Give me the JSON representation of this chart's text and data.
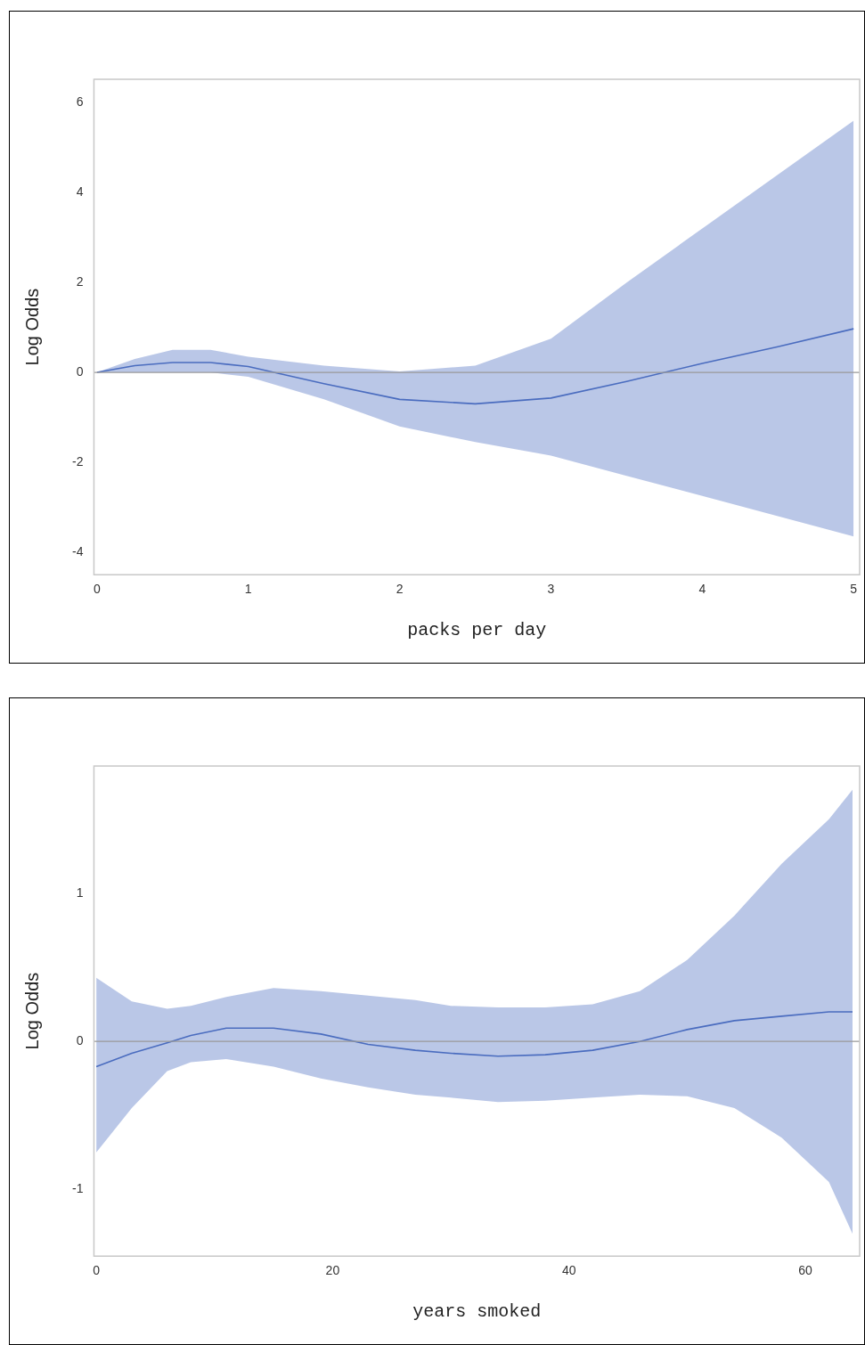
{
  "chart_data": [
    {
      "type": "line",
      "xlabel": "packs per day",
      "ylabel": "Log Odds",
      "xlim": [
        -0.02,
        5.04
      ],
      "xticks": [
        0,
        1,
        2,
        3,
        4,
        5
      ],
      "ylim": [
        -4.5,
        6.52
      ],
      "yticks": [
        -4,
        -2,
        0,
        2,
        4,
        6
      ],
      "grid": false,
      "legend": false,
      "marker": "none",
      "line_style": "solid",
      "ref_lines": [
        {
          "axis": "y",
          "value": 0,
          "color": "#999999"
        }
      ],
      "series": [
        {
          "color": "#4a6cbf",
          "x": [
            0,
            0.25,
            0.5,
            0.75,
            1,
            1.5,
            2,
            2.5,
            3,
            3.5,
            4,
            4.5,
            5
          ],
          "values": [
            0,
            0.15,
            0.22,
            0.22,
            0.13,
            -0.25,
            -0.6,
            -0.7,
            -0.57,
            -0.2,
            0.2,
            0.57,
            0.97
          ],
          "lower": [
            0,
            0,
            0,
            0,
            -0.1,
            -0.6,
            -1.2,
            -1.55,
            -1.85,
            -2.3,
            -2.75,
            -3.2,
            -3.65
          ],
          "upper": [
            0,
            0.3,
            0.5,
            0.5,
            0.35,
            0.15,
            0.02,
            0.15,
            0.75,
            2.0,
            3.2,
            4.4,
            5.6
          ]
        }
      ]
    },
    {
      "type": "line",
      "xlabel": "years smoked",
      "ylabel": "Log Odds",
      "xlim": [
        -0.2,
        64.6
      ],
      "xticks": [
        0,
        20,
        40,
        60
      ],
      "ylim": [
        -1.45,
        1.86
      ],
      "yticks": [
        -1,
        0,
        1
      ],
      "grid": false,
      "legend": false,
      "marker": "none",
      "line_style": "solid",
      "ref_lines": [
        {
          "axis": "y",
          "value": 0,
          "color": "#999999"
        }
      ],
      "series": [
        {
          "color": "#4a6cbf",
          "x": [
            0,
            3,
            6,
            8,
            11,
            15,
            19,
            23,
            27,
            30,
            34,
            38,
            42,
            46,
            50,
            54,
            58,
            62,
            64
          ],
          "values": [
            -0.17,
            -0.08,
            -0.01,
            0.04,
            0.09,
            0.09,
            0.05,
            -0.02,
            -0.06,
            -0.08,
            -0.1,
            -0.09,
            -0.06,
            0.0,
            0.08,
            0.14,
            0.17,
            0.2,
            0.2
          ],
          "lower": [
            -0.75,
            -0.45,
            -0.2,
            -0.14,
            -0.12,
            -0.17,
            -0.25,
            -0.31,
            -0.36,
            -0.38,
            -0.41,
            -0.4,
            -0.38,
            -0.36,
            -0.37,
            -0.45,
            -0.65,
            -0.95,
            -1.3
          ],
          "upper": [
            0.43,
            0.27,
            0.22,
            0.24,
            0.3,
            0.36,
            0.34,
            0.31,
            0.28,
            0.24,
            0.23,
            0.23,
            0.25,
            0.34,
            0.55,
            0.85,
            1.2,
            1.5,
            1.7
          ]
        }
      ]
    }
  ]
}
